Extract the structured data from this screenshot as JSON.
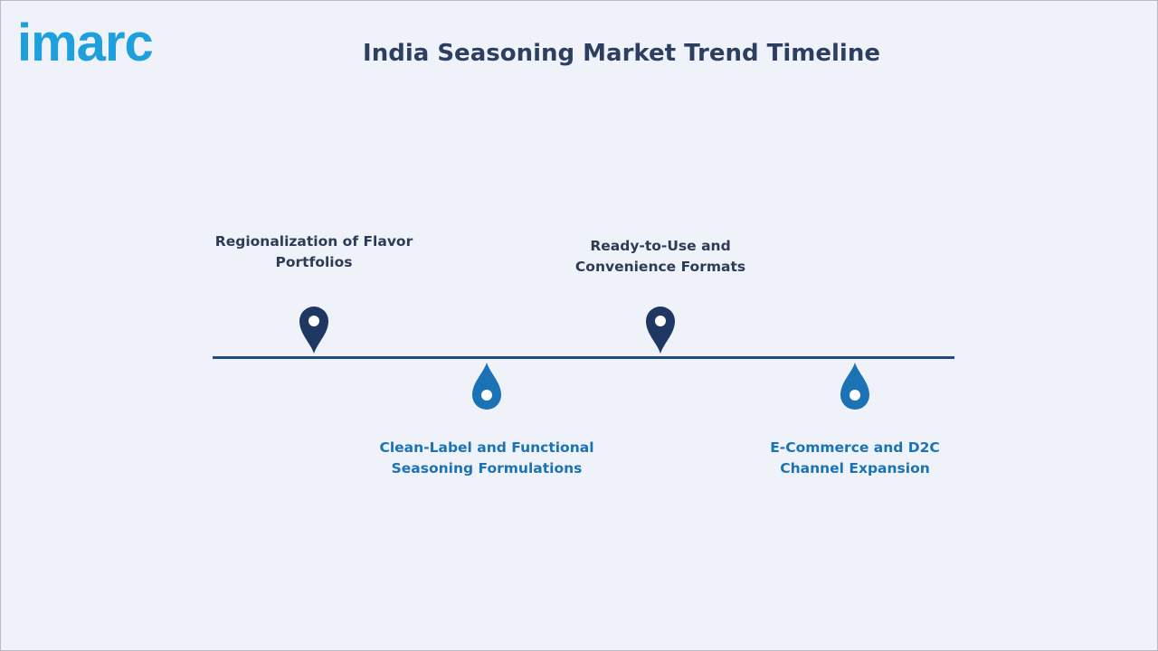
{
  "logo": "imarc",
  "header": {
    "title": "India Seasoning Market Trend Timeline"
  },
  "milestones": [
    {
      "lines": [
        "Regionalization of Flavor",
        "Portfolios"
      ]
    },
    {
      "lines": [
        "Clean-Label and Functional",
        "Seasoning Formulations"
      ]
    },
    {
      "lines": [
        "Ready-to-Use and",
        "Convenience Formats"
      ]
    },
    {
      "lines": [
        "E-Commerce and D2C",
        "Channel Expansion"
      ]
    }
  ]
}
